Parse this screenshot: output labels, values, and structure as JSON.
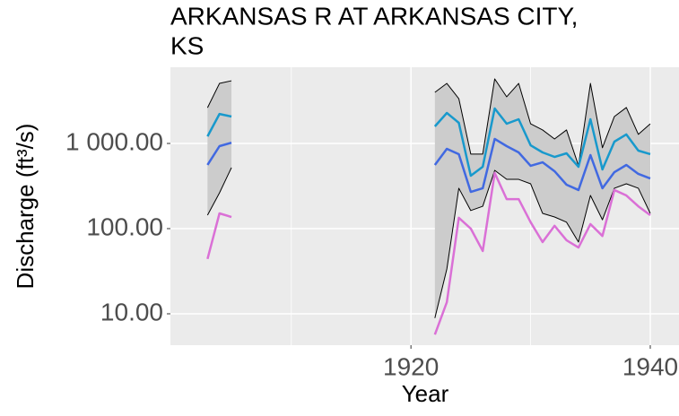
{
  "chart_data": {
    "type": "line",
    "title": [
      "ARKANSAS R AT ARKANSAS CITY,",
      "KS"
    ],
    "x_label": "Year",
    "y_label": "Discharge (ft³/s)",
    "log_y": true,
    "grid": true,
    "xlim": [
      1899.9,
      1942.4
    ],
    "xticks": [
      1920,
      1940
    ],
    "ylim": [
      4.28,
      7850
    ],
    "yticks": [
      {
        "value": 10,
        "label": "10.00"
      },
      {
        "value": 100,
        "label": "100.00"
      },
      {
        "value": 1000,
        "label": "1 000.00"
      }
    ],
    "x": [
      1903,
      1904,
      1905,
      1906,
      1922,
      1923,
      1924,
      1925,
      1926,
      1927,
      1928,
      1929,
      1930,
      1931,
      1932,
      1933,
      1934,
      1935,
      1936,
      1937,
      1938,
      1939,
      1940
    ],
    "band": {
      "fill": "#cccccc",
      "line_color": "#000000",
      "upper": [
        2630,
        5070,
        5450,
        null,
        3980,
        5070,
        3360,
        750,
        750,
        5730,
        3530,
        5070,
        1700,
        1440,
        1130,
        1440,
        550,
        5070,
        890,
        2070,
        2640,
        1280,
        1700
      ],
      "lower": [
        144,
        263,
        520,
        null,
        8.9,
        33.6,
        298,
        163,
        183,
        483,
        379,
        379,
        336,
        151,
        137,
        119,
        69.5,
        245,
        127,
        298,
        336,
        298,
        151
      ]
    },
    "series": [
      {
        "color": "#1899cc",
        "values": [
          1210,
          2220,
          2070,
          null,
          1585,
          2280,
          1746,
          418,
          532,
          2575,
          1705,
          1925,
          952,
          785,
          695,
          766,
          532,
          1925,
          495,
          1050,
          1275,
          824,
          748
        ]
      },
      {
        "color": "#4169e1",
        "values": [
          560,
          930,
          1020,
          null,
          559,
          865,
          748,
          270,
          298,
          1130,
          930,
          785,
          546,
          601,
          472,
          328,
          284,
          730,
          298,
          460,
          559,
          439,
          388
        ]
      },
      {
        "color": "#da70d6",
        "values": [
          44,
          151,
          137,
          null,
          5.7,
          13.7,
          134,
          100,
          54.6,
          450,
          222,
          222,
          119,
          69.5,
          108,
          73,
          60,
          113,
          82,
          284,
          245,
          183,
          144
        ]
      }
    ]
  }
}
